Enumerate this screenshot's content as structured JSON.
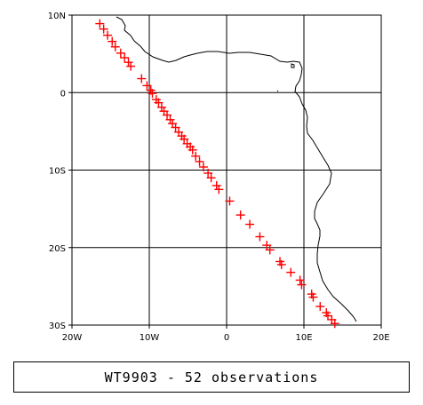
{
  "chart_data": {
    "type": "scatter",
    "title": "",
    "xlabel": "",
    "ylabel": "",
    "xlim": [
      -20,
      20
    ],
    "ylim": [
      -30,
      10
    ],
    "x_ticks": [
      {
        "value": -20,
        "label": "20W"
      },
      {
        "value": -10,
        "label": "10W"
      },
      {
        "value": 0,
        "label": "0"
      },
      {
        "value": 10,
        "label": "10E"
      },
      {
        "value": 20,
        "label": "20E"
      }
    ],
    "y_ticks": [
      {
        "value": 10,
        "label": "10N"
      },
      {
        "value": 0,
        "label": "0"
      },
      {
        "value": -10,
        "label": "10S"
      },
      {
        "value": -20,
        "label": "20S"
      },
      {
        "value": -30,
        "label": "30S"
      }
    ],
    "grid": true,
    "marker": "plus",
    "marker_color": "#ff0000",
    "coastline_color": "#000000",
    "series": [
      {
        "name": "",
        "points": [
          [
            -16.4,
            8.9
          ],
          [
            -15.9,
            8.2
          ],
          [
            -15.4,
            7.4
          ],
          [
            -14.8,
            6.6
          ],
          [
            -14.4,
            5.9
          ],
          [
            -13.7,
            5.1
          ],
          [
            -13.2,
            4.5
          ],
          [
            -12.4,
            3.4
          ],
          [
            -11.0,
            1.8
          ],
          [
            -9.8,
            0.3
          ],
          [
            -9.6,
            -0.1
          ],
          [
            -8.8,
            -1.3
          ],
          [
            -8.4,
            -1.9
          ],
          [
            -7.7,
            -2.9
          ],
          [
            -7.3,
            -3.5
          ],
          [
            -6.6,
            -4.5
          ],
          [
            -6.2,
            -5.1
          ],
          [
            -5.5,
            -6.0
          ],
          [
            -5.1,
            -6.6
          ],
          [
            -4.4,
            -7.4
          ],
          [
            -4.0,
            -8.2
          ],
          [
            -3.5,
            -8.9
          ],
          [
            -3.0,
            -9.6
          ],
          [
            -2.4,
            -10.4
          ],
          [
            -2.0,
            -11.0
          ],
          [
            -1.0,
            -12.5
          ],
          [
            0.4,
            -14.0
          ],
          [
            1.8,
            -15.8
          ],
          [
            3.0,
            -17.0
          ],
          [
            4.3,
            -18.6
          ],
          [
            5.6,
            -20.3
          ],
          [
            6.9,
            -21.8
          ],
          [
            8.3,
            -23.2
          ],
          [
            9.7,
            -24.8
          ],
          [
            11.0,
            -26.0
          ],
          [
            12.1,
            -27.6
          ],
          [
            12.9,
            -28.4
          ],
          [
            13.6,
            -29.3
          ],
          [
            14.0,
            -29.8
          ],
          [
            -12.7,
            3.9
          ],
          [
            -10.3,
            0.9
          ],
          [
            -9.1,
            -0.9
          ],
          [
            -8.1,
            -2.4
          ],
          [
            -7.0,
            -4.0
          ],
          [
            -5.8,
            -5.6
          ],
          [
            -4.7,
            -7.0
          ],
          [
            -1.3,
            -12.0
          ],
          [
            5.2,
            -19.7
          ],
          [
            7.1,
            -22.2
          ],
          [
            9.5,
            -24.2
          ],
          [
            11.2,
            -26.4
          ],
          [
            13.1,
            -28.8
          ]
        ]
      }
    ]
  },
  "caption": {
    "text": "WT9903 - 52 observations"
  }
}
